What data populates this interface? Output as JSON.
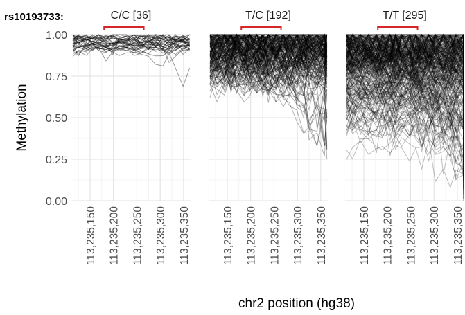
{
  "chart_data": {
    "type": "line",
    "snp_label": "rs10193733:",
    "ylabel": "Methylation",
    "xlabel": "chr2 position (hg38)",
    "ylim": [
      0,
      1
    ],
    "xlim": [
      113235110,
      113235365
    ],
    "y_ticks": [
      0,
      0.25,
      0.5,
      0.75,
      1
    ],
    "y_tick_labels": [
      "0.00",
      "0.25",
      "0.50",
      "0.75",
      "1.00"
    ],
    "x_ticks": [
      113235150,
      113235200,
      113235250,
      113235300,
      113235350
    ],
    "x_tick_labels": [
      "113,235,150",
      "113,235,200",
      "113,235,250",
      "113,235,300",
      "113,235,350"
    ],
    "highlight_region": [
      113235180,
      113235265
    ],
    "highlight_color": "#d62728",
    "line_color": "#000000",
    "grid": true,
    "panels": [
      {
        "label": "C/C [36]",
        "n_lines": 36,
        "typical_range": [
          0.85,
          1.0
        ],
        "min_value": 0.6
      },
      {
        "label": "T/C [192]",
        "n_lines": 192,
        "typical_range": [
          0.62,
          1.0
        ],
        "min_value": 0.25
      },
      {
        "label": "T/T [295]",
        "n_lines": 295,
        "typical_range": [
          0.35,
          1.0
        ],
        "min_value": 0.0
      }
    ]
  }
}
